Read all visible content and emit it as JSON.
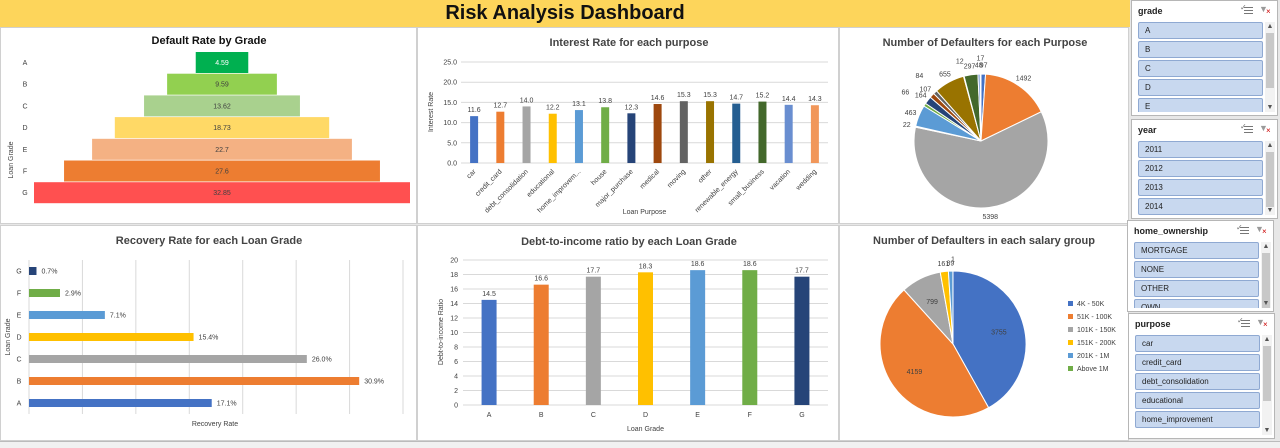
{
  "dashboard_title": "Risk Analysis Dashboard",
  "colors": {
    "title_bar": "#fdd55b",
    "slicer_item": "#c8d8ef"
  },
  "chart_data": [
    {
      "id": "default-rate",
      "type": "bar",
      "orientation": "horizontal-funnel",
      "title": "Default Rate by Grade",
      "ylabel": "Loan Grade",
      "categories": [
        "A",
        "B",
        "C",
        "D",
        "E",
        "F",
        "G"
      ],
      "values": [
        4.59,
        9.59,
        13.62,
        18.73,
        22.7,
        27.6,
        32.85
      ],
      "labels": [
        "4.59",
        "9.59",
        "13.62",
        "18.73",
        "22.7",
        "27.6",
        "32.85"
      ],
      "colors": [
        "#00b050",
        "#92d050",
        "#a9d18e",
        "#ffd966",
        "#f4b183",
        "#ed7d31",
        "#ff5050"
      ]
    },
    {
      "id": "interest-rate",
      "type": "bar",
      "title": "Interest Rate for each purpose",
      "xlabel": "Loan Purpose",
      "ylabel": "Interest Rate",
      "ylim": [
        0,
        25
      ],
      "yticks": [
        "0.0",
        "5.0",
        "10.0",
        "15.0",
        "20.0",
        "25.0"
      ],
      "grid": true,
      "categories": [
        "car",
        "credit_card",
        "debt_consolidation",
        "educational",
        "home_improvem...",
        "house",
        "major_purchase",
        "medical",
        "moving",
        "other",
        "renewable_energy",
        "small_business",
        "vacation",
        "wedding"
      ],
      "values": [
        11.6,
        12.7,
        14.0,
        12.2,
        13.1,
        13.8,
        12.3,
        14.6,
        15.3,
        15.3,
        14.7,
        15.2,
        14.4,
        14.3
      ],
      "labels": [
        "11.6",
        "12.7",
        "14.0",
        "12.2",
        "13.1",
        "13.8",
        "12.3",
        "14.6",
        "15.3",
        "15.3",
        "14.7",
        "15.2",
        "14.4",
        "14.3"
      ],
      "colors": [
        "#4472c4",
        "#ed7d31",
        "#a5a5a5",
        "#ffc000",
        "#5b9bd5",
        "#70ad47",
        "#264478",
        "#9e480e",
        "#636363",
        "#997300",
        "#255e91",
        "#43682b",
        "#698ed0",
        "#f1975a"
      ]
    },
    {
      "id": "defaulters-purpose",
      "type": "pie",
      "title": "Number of Defaulters for each Purpose",
      "categories": [
        "car",
        "credit_card",
        "debt_consolidation",
        "educational",
        "home_improvement",
        "house",
        "major_purchase",
        "medical",
        "moving",
        "other",
        "renewable_energy",
        "small_business",
        "vacation",
        "wedding"
      ],
      "values": [
        97,
        1492,
        5398,
        22,
        463,
        66,
        164,
        107,
        84,
        655,
        12,
        297,
        48,
        17
      ],
      "labels": [
        "97",
        "1492",
        "5398",
        "22",
        "463",
        "66",
        "164",
        "107",
        "84",
        "655",
        "12",
        "297",
        "48",
        "17"
      ],
      "colors": [
        "#4472c4",
        "#ed7d31",
        "#a5a5a5",
        "#ffc000",
        "#5b9bd5",
        "#70ad47",
        "#264478",
        "#9e480e",
        "#636363",
        "#997300",
        "#255e91",
        "#43682b",
        "#698ed0",
        "#f1975a"
      ]
    },
    {
      "id": "recovery-rate",
      "type": "bar",
      "orientation": "horizontal",
      "title": "Recovery Rate for each Loan Grade",
      "xlabel": "Recovery Rate",
      "ylabel": "Loan Grade",
      "xlim": [
        0,
        35
      ],
      "grid": true,
      "categories": [
        "A",
        "B",
        "C",
        "D",
        "E",
        "F",
        "G"
      ],
      "values": [
        17.1,
        30.9,
        26.0,
        15.4,
        7.1,
        2.9,
        0.7
      ],
      "labels": [
        "17.1%",
        "30.9%",
        "26.0%",
        "15.4%",
        "7.1%",
        "2.9%",
        "0.7%"
      ],
      "colors": [
        "#4472c4",
        "#ed7d31",
        "#a5a5a5",
        "#ffc000",
        "#5b9bd5",
        "#70ad47",
        "#264478"
      ]
    },
    {
      "id": "dti",
      "type": "bar",
      "title": "Debt-to-income ratio by each Loan Grade",
      "xlabel": "Loan Grade",
      "ylabel": "Debt-to-income Ratio",
      "ylim": [
        0,
        20
      ],
      "yticks": [
        "0",
        "2",
        "4",
        "6",
        "8",
        "10",
        "12",
        "14",
        "16",
        "18",
        "20"
      ],
      "grid": true,
      "categories": [
        "A",
        "B",
        "C",
        "D",
        "E",
        "F",
        "G"
      ],
      "values": [
        14.5,
        16.6,
        17.7,
        18.3,
        18.6,
        18.6,
        17.7
      ],
      "labels": [
        "14.5",
        "16.6",
        "17.7",
        "18.3",
        "18.6",
        "18.6",
        "17.7"
      ],
      "colors": [
        "#4472c4",
        "#ed7d31",
        "#a5a5a5",
        "#ffc000",
        "#5b9bd5",
        "#70ad47",
        "#264478"
      ]
    },
    {
      "id": "defaulters-salary",
      "type": "pie",
      "title": "Number of Defaulters in each salary group",
      "legend_position": "right",
      "categories": [
        "4K - 50K",
        "51K - 100K",
        "101K - 150K",
        "151K - 200K",
        "201K - 1M",
        "Above 1M"
      ],
      "values": [
        3755,
        4159,
        799,
        161,
        89,
        1
      ],
      "labels": [
        "3755",
        "4159",
        "799",
        "161",
        "89",
        "1"
      ],
      "colors": [
        "#4472c4",
        "#ed7d31",
        "#a5a5a5",
        "#ffc000",
        "#5b9bd5",
        "#70ad47"
      ]
    }
  ],
  "slicers": [
    {
      "id": "grade",
      "title": "grade",
      "items": [
        "A",
        "B",
        "C",
        "D",
        "E"
      ]
    },
    {
      "id": "year",
      "title": "year",
      "items": [
        "2011",
        "2012",
        "2013",
        "2014"
      ]
    },
    {
      "id": "home_ownership",
      "title": "home_ownership",
      "items": [
        "MORTGAGE",
        "NONE",
        "OTHER",
        "OWN"
      ]
    },
    {
      "id": "purpose",
      "title": "purpose",
      "items": [
        "car",
        "credit_card",
        "debt_consolidation",
        "educational",
        "home_improvement"
      ]
    }
  ]
}
